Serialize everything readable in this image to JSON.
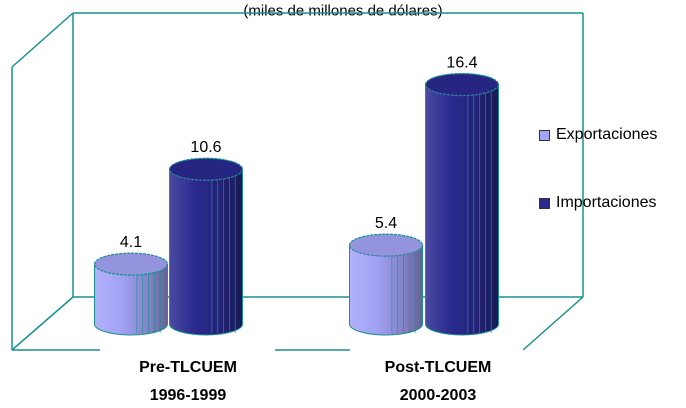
{
  "chart_data": {
    "type": "bar",
    "title": "(miles de millones de dólares)",
    "categories": [
      {
        "line1": "Pre-TLCUEM",
        "line2": "1996-1999"
      },
      {
        "line1": "Post-TLCUEM",
        "line2": "2000-2003"
      }
    ],
    "series": [
      {
        "name": "Exportaciones",
        "values": [
          4.1,
          5.4
        ],
        "labels": [
          "4.1",
          "5.4"
        ],
        "color": "#a3a3f7"
      },
      {
        "name": "Importaciones",
        "values": [
          10.6,
          16.4
        ],
        "labels": [
          "10.6",
          "16.4"
        ],
        "color": "#2a2a90"
      }
    ],
    "ylim": [
      0,
      18
    ],
    "grid": false,
    "legend_position": "right",
    "frame_color": "#1a9090"
  }
}
